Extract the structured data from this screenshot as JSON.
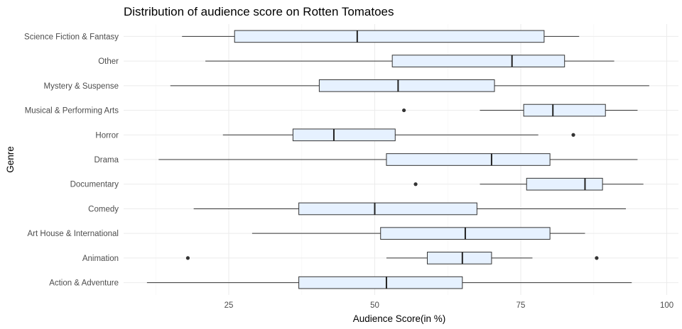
{
  "chart_data": {
    "type": "boxplot",
    "orientation": "horizontal",
    "title": "Distribution of audience score on Rotten Tomatoes",
    "xlabel": "Audience Score(in %)",
    "ylabel": "Genre",
    "xlim": [
      7,
      102
    ],
    "xticks": [
      25,
      50,
      75,
      100
    ],
    "xtick_labels": [
      "25",
      "50",
      "75",
      "100"
    ],
    "grid": true,
    "box_fill": "#e6f1ff",
    "line_color": "#333333",
    "categories": [
      "Action & Adventure",
      "Animation",
      "Art House & International",
      "Comedy",
      "Documentary",
      "Drama",
      "Horror",
      "Musical & Performing Arts",
      "Mystery & Suspense",
      "Other",
      "Science Fiction & Fantasy"
    ],
    "boxes": [
      {
        "category": "Action & Adventure",
        "whisker_low": 11,
        "q1": 37,
        "median": 52,
        "q3": 65,
        "whisker_high": 94,
        "outliers": []
      },
      {
        "category": "Animation",
        "whisker_low": 52,
        "q1": 59,
        "median": 65,
        "q3": 70,
        "whisker_high": 77,
        "outliers": [
          18,
          88
        ]
      },
      {
        "category": "Art House & International",
        "whisker_low": 29,
        "q1": 51,
        "median": 65.5,
        "q3": 80,
        "whisker_high": 86,
        "outliers": []
      },
      {
        "category": "Comedy",
        "whisker_low": 19,
        "q1": 37,
        "median": 50,
        "q3": 67.5,
        "whisker_high": 93,
        "outliers": []
      },
      {
        "category": "Documentary",
        "whisker_low": 68,
        "q1": 76,
        "median": 86,
        "q3": 89,
        "whisker_high": 96,
        "outliers": [
          57
        ]
      },
      {
        "category": "Drama",
        "whisker_low": 13,
        "q1": 52,
        "median": 70,
        "q3": 80,
        "whisker_high": 95,
        "outliers": []
      },
      {
        "category": "Horror",
        "whisker_low": 24,
        "q1": 36,
        "median": 43,
        "q3": 53.5,
        "whisker_high": 78,
        "outliers": [
          84
        ]
      },
      {
        "category": "Musical & Performing Arts",
        "whisker_low": 68,
        "q1": 75.5,
        "median": 80.5,
        "q3": 89.5,
        "whisker_high": 95,
        "outliers": [
          55
        ]
      },
      {
        "category": "Mystery & Suspense",
        "whisker_low": 15,
        "q1": 40.5,
        "median": 54,
        "q3": 70.5,
        "whisker_high": 97,
        "outliers": []
      },
      {
        "category": "Other",
        "whisker_low": 21,
        "q1": 53,
        "median": 73.5,
        "q3": 82.5,
        "whisker_high": 91,
        "outliers": []
      },
      {
        "category": "Science Fiction & Fantasy",
        "whisker_low": 17,
        "q1": 26,
        "median": 47,
        "q3": 79,
        "whisker_high": 85,
        "outliers": []
      }
    ]
  }
}
